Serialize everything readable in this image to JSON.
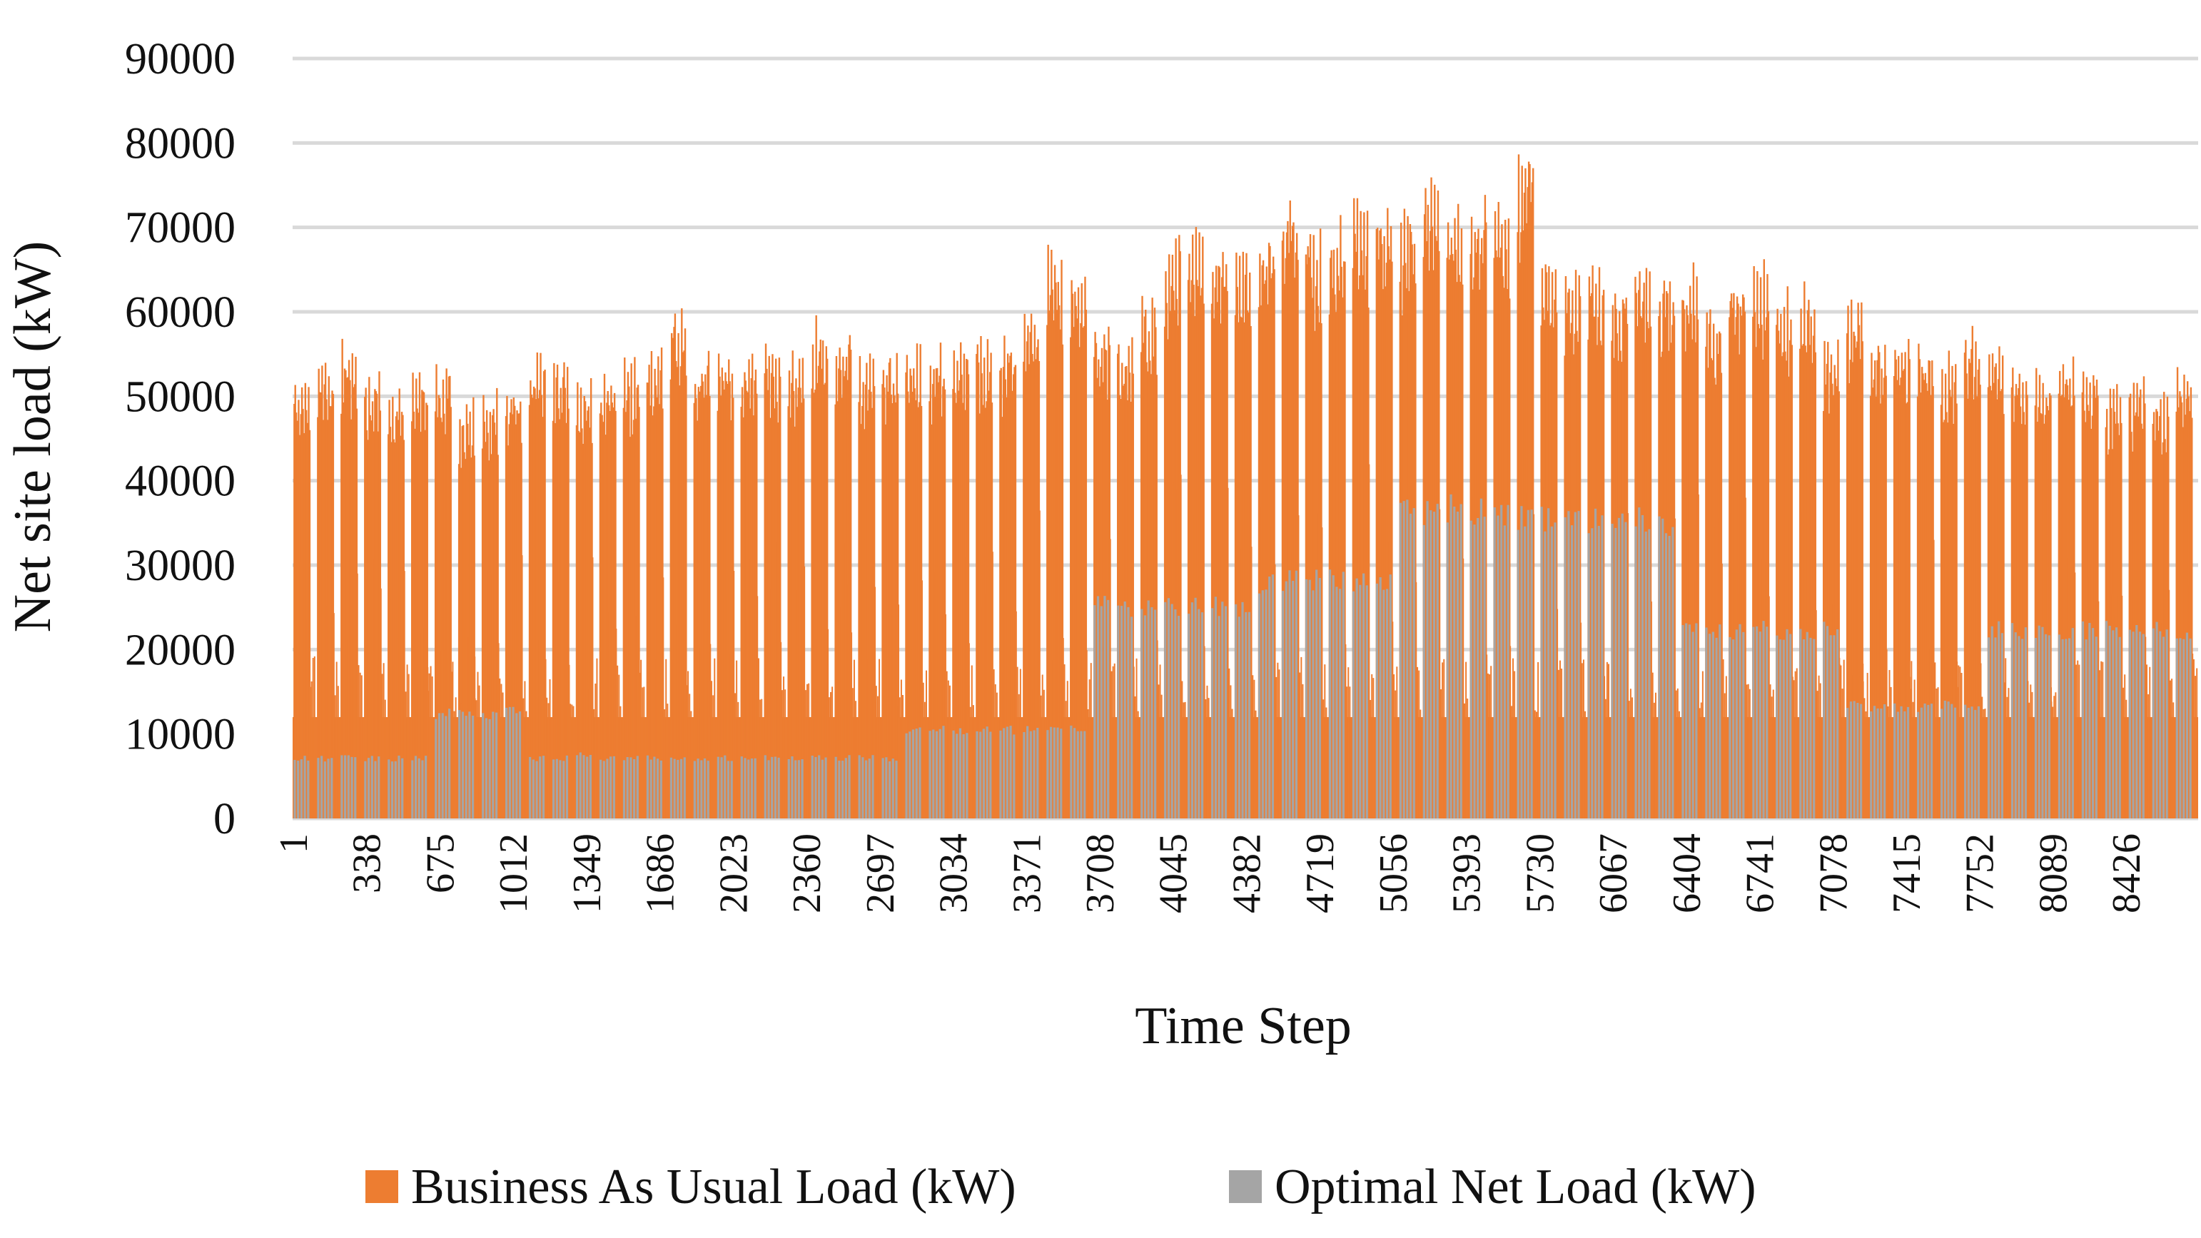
{
  "chart_data": {
    "type": "bar",
    "title": "",
    "xlabel": "Time Step",
    "ylabel": "Net site load (kW)",
    "ylim": [
      0,
      90000
    ],
    "yticks": [
      "0",
      "10000",
      "20000",
      "30000",
      "40000",
      "50000",
      "60000",
      "70000",
      "80000",
      "90000"
    ],
    "y_tick_values": [
      0,
      10000,
      20000,
      30000,
      40000,
      50000,
      60000,
      70000,
      80000,
      90000
    ],
    "xlim": [
      1,
      8760
    ],
    "xticks": [
      "1",
      "338",
      "675",
      "1012",
      "1349",
      "1686",
      "2023",
      "2360",
      "2697",
      "3034",
      "3371",
      "3708",
      "4045",
      "4382",
      "4719",
      "5056",
      "5393",
      "5730",
      "6067",
      "6404",
      "6741",
      "7078",
      "7415",
      "7752",
      "8089",
      "8426"
    ],
    "x_tick_values": [
      1,
      338,
      675,
      1012,
      1349,
      1686,
      2023,
      2360,
      2697,
      3034,
      3371,
      3708,
      4045,
      4382,
      4719,
      5056,
      5393,
      5730,
      6067,
      6404,
      6741,
      7078,
      7415,
      7752,
      8089,
      8426
    ],
    "grid": true,
    "legend_position": "bottom",
    "series": [
      {
        "name": "Business As Usual Load (kW)",
        "color": "#ED7D31",
        "baseline_kw": 12000,
        "weekly_peak_kw": [
          53000,
          55000,
          57500,
          53000,
          51000,
          53500,
          54000,
          50500,
          51000,
          52000,
          55500,
          54500,
          52500,
          53000,
          55500,
          56000,
          60500,
          55500,
          56000,
          55500,
          56500,
          55500,
          60000,
          58500,
          55500,
          55500,
          56500,
          56500,
          57500,
          58000,
          57500,
          61000,
          68000,
          65000,
          59000,
          58000,
          62500,
          69500,
          71500,
          69500,
          68500,
          70000,
          74500,
          70500,
          71500,
          73500,
          74000,
          72500,
          77500,
          74500,
          74500,
          73500,
          80000,
          69000,
          66000,
          65500,
          64000,
          66500,
          65500,
          66000,
          62000,
          65500,
          66500,
          63500,
          64000,
          57500,
          62000,
          56500,
          58500,
          57000,
          55500,
          58500,
          57500,
          55000,
          54000,
          56000,
          55000,
          52000,
          53000,
          52000,
          54000
        ]
      },
      {
        "name": "Optimal Net Load (kW)",
        "color": "#A5A5A5",
        "weekly_peak_kw": [
          7500,
          7500,
          7500,
          7500,
          7500,
          7500,
          13000,
          13000,
          13000,
          13500,
          7500,
          7500,
          8000,
          7500,
          7500,
          7500,
          7500,
          7500,
          7500,
          7500,
          7500,
          7500,
          7500,
          7500,
          7500,
          7500,
          11000,
          11000,
          11000,
          11000,
          11000,
          11000,
          11000,
          11000,
          26500,
          26500,
          26500,
          26500,
          26500,
          26500,
          26500,
          29500,
          29500,
          29500,
          29500,
          29500,
          29500,
          38500,
          38500,
          38500,
          38500,
          38500,
          37000,
          37000,
          37000,
          37000,
          37000,
          37000,
          37000,
          23500,
          23500,
          23500,
          23500,
          23500,
          23500,
          23500,
          14000,
          14000,
          14000,
          14000,
          14000,
          14000,
          23500,
          23500,
          23500,
          23500,
          23500,
          23500,
          23500,
          23500,
          23500
        ]
      }
    ]
  }
}
